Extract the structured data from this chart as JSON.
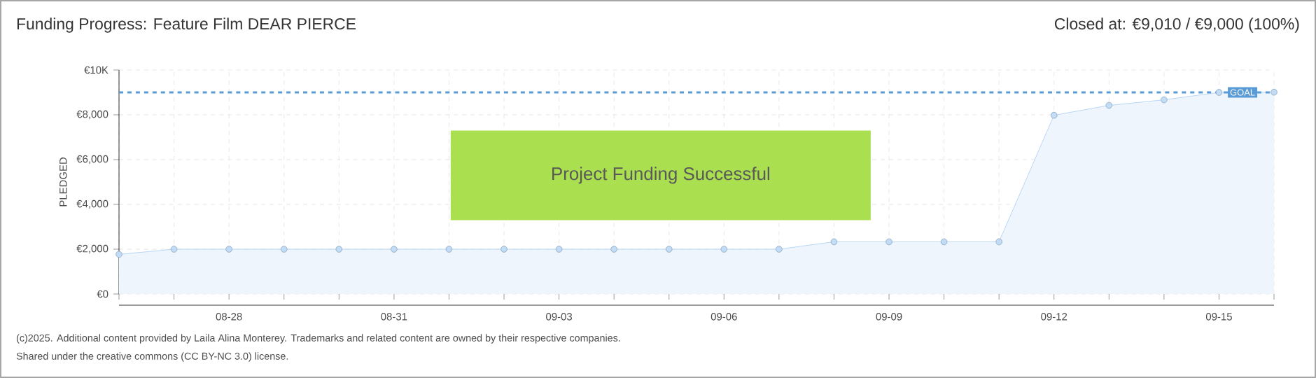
{
  "chart_data": {
    "type": "area",
    "title": "Funding Progress: Feature Film DEAR PIERCE",
    "subtitle": "Closed at: €9,010 / €9,000 (100%)",
    "ylabel": "PLEDGED",
    "categories": [
      null,
      null,
      "08-28",
      null,
      null,
      "08-31",
      null,
      null,
      "09-03",
      null,
      null,
      "09-06",
      null,
      null,
      "09-09",
      null,
      null,
      "09-12",
      null,
      null,
      "09-15",
      null
    ],
    "series": [
      {
        "color": "#a9cdf2",
        "values": [
          1770,
          2000,
          2000,
          2000,
          2000,
          2000,
          2000,
          2000,
          2000,
          2000,
          2000,
          2000,
          2000,
          2330,
          2330,
          2330,
          2330,
          7980,
          8420,
          8670,
          9000,
          9010
        ]
      }
    ],
    "ylim": [
      0,
      10000
    ],
    "yticks": [
      {
        "value": 0,
        "label": "€0"
      },
      {
        "value": 2000,
        "label": "€2,000"
      },
      {
        "value": 4000,
        "label": "€4,000"
      },
      {
        "value": 6000,
        "label": "€6,000"
      },
      {
        "value": 8000,
        "label": "€8,000"
      },
      {
        "value": 10000,
        "label": "€10K"
      }
    ],
    "ref_lines": [
      {
        "axis": "y",
        "value": 9000,
        "label": "GOAL",
        "color": "#5b9bd5",
        "line_style": "dashed"
      }
    ],
    "annotations": [
      "Project Funding Successful",
      "(c)2025. Additional content provided by Laila Alina Monterey. Trademarks and related content are owned by their respective companies.",
      "Shared under the creative commons (CC BY-NC 3.0) license."
    ],
    "grid": true,
    "marker": "circle",
    "line_style": "solid"
  }
}
